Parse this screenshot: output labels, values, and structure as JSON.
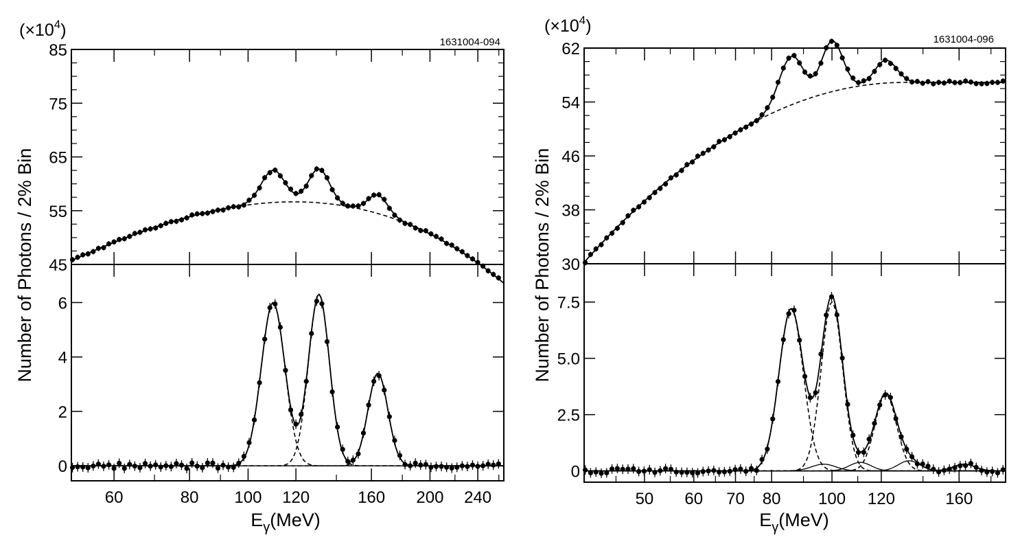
{
  "chart_data": [
    {
      "type": "scatter",
      "id": "left",
      "run_id": "1631004-094",
      "multiplier": {
        "open": "(×10",
        "exp": "4",
        "close": ")"
      },
      "ylabel": "Number of Photons / 2% Bin",
      "xlabel": {
        "main": "E",
        "sub": "γ",
        "unit": "(MeV)"
      },
      "x_scale": "log",
      "xlim": [
        51,
        265
      ],
      "x_ticks": [
        {
          "value": 60,
          "label": "60"
        },
        {
          "value": 80,
          "label": "80"
        },
        {
          "value": 100,
          "label": "100"
        },
        {
          "value": 120,
          "label": "120"
        },
        {
          "value": 160,
          "label": "160"
        },
        {
          "value": 200,
          "label": "200"
        },
        {
          "value": 240,
          "label": "240"
        }
      ],
      "x_minor_ticks": [
        70,
        90,
        140,
        180,
        220,
        260
      ],
      "upper": {
        "ylim": [
          45,
          85
        ],
        "y_ticks": [
          {
            "value": 45,
            "label": "45"
          },
          {
            "value": 55,
            "label": "55"
          },
          {
            "value": 65,
            "label": "65"
          },
          {
            "value": 75,
            "label": "75"
          },
          {
            "value": 85,
            "label": "85"
          }
        ],
        "background": {
          "model": "poly",
          "y0": 45.7,
          "slope": 36.5,
          "curve": -17.8,
          "cube": -22.9
        },
        "peaks": [
          {
            "mu": 110,
            "amp": 6.0,
            "sigma": 0.045
          },
          {
            "mu": 131,
            "amp": 6.3,
            "sigma": 0.04
          },
          {
            "mu": 164,
            "amp": 3.4,
            "sigma": 0.038
          }
        ]
      },
      "lower": {
        "ylim": [
          -0.55,
          7.4
        ],
        "y_ticks": [
          {
            "value": 0,
            "label": "0"
          },
          {
            "value": 2,
            "label": "2"
          },
          {
            "value": 4,
            "label": "4"
          },
          {
            "value": 6,
            "label": "6"
          }
        ],
        "peaks": [
          {
            "mu": 110,
            "amp": 6.0,
            "sigma": 0.045
          },
          {
            "mu": 131,
            "amp": 6.3,
            "sigma": 0.04
          },
          {
            "mu": 164,
            "amp": 3.4,
            "sigma": 0.038
          }
        ],
        "noise": 0.11
      }
    },
    {
      "type": "scatter",
      "id": "right",
      "run_id": "1631004-096",
      "multiplier": {
        "open": "(×10",
        "exp": "4",
        "close": ")"
      },
      "ylabel": "Number of Photons / 2% Bin",
      "xlabel": {
        "main": "E",
        "sub": "γ",
        "unit": "(MeV)"
      },
      "x_scale": "log",
      "xlim": [
        40,
        190
      ],
      "x_ticks": [
        {
          "value": 50,
          "label": "50"
        },
        {
          "value": 60,
          "label": "60"
        },
        {
          "value": 70,
          "label": "70"
        },
        {
          "value": 80,
          "label": "80"
        },
        {
          "value": 100,
          "label": "100"
        },
        {
          "value": 120,
          "label": "120"
        },
        {
          "value": 160,
          "label": "160"
        }
      ],
      "x_minor_ticks": [
        45,
        55,
        65,
        75,
        90,
        110,
        140,
        180
      ],
      "upper": {
        "ylim": [
          30,
          62
        ],
        "y_ticks": [
          {
            "value": 30,
            "label": "30"
          },
          {
            "value": 38,
            "label": "38"
          },
          {
            "value": 46,
            "label": "46"
          },
          {
            "value": 54,
            "label": "54"
          },
          {
            "value": 62,
            "label": "62"
          }
        ],
        "background": {
          "model": "sat",
          "y0": 30.2,
          "top": 56.9,
          "p": 2.0,
          "knee": 0.76
        },
        "peaks": [
          {
            "mu": 86,
            "amp": 7.2,
            "sigma": 0.045
          },
          {
            "mu": 100,
            "amp": 7.5,
            "sigma": 0.04
          },
          {
            "mu": 122,
            "amp": 3.4,
            "sigma": 0.04
          }
        ]
      },
      "lower": {
        "ylim": [
          -0.5,
          9.2
        ],
        "y_ticks": [
          {
            "value": 0,
            "label": "0"
          },
          {
            "value": 2.5,
            "label": "2.5"
          },
          {
            "value": 5,
            "label": "5.0"
          },
          {
            "value": 7.5,
            "label": "7.5"
          }
        ],
        "peaks": [
          {
            "mu": 86,
            "amp": 7.2,
            "sigma": 0.045
          },
          {
            "mu": 100,
            "amp": 7.5,
            "sigma": 0.04
          },
          {
            "mu": 122,
            "amp": 3.4,
            "sigma": 0.04
          }
        ],
        "small_peaks": [
          {
            "mu": 97,
            "amp": 0.3,
            "sigma": 0.045
          },
          {
            "mu": 111,
            "amp": 0.38,
            "sigma": 0.04
          },
          {
            "mu": 133,
            "amp": 0.45,
            "sigma": 0.04
          },
          {
            "mu": 163,
            "amp": 0.3,
            "sigma": 0.04
          }
        ],
        "noise": 0.11
      }
    }
  ]
}
